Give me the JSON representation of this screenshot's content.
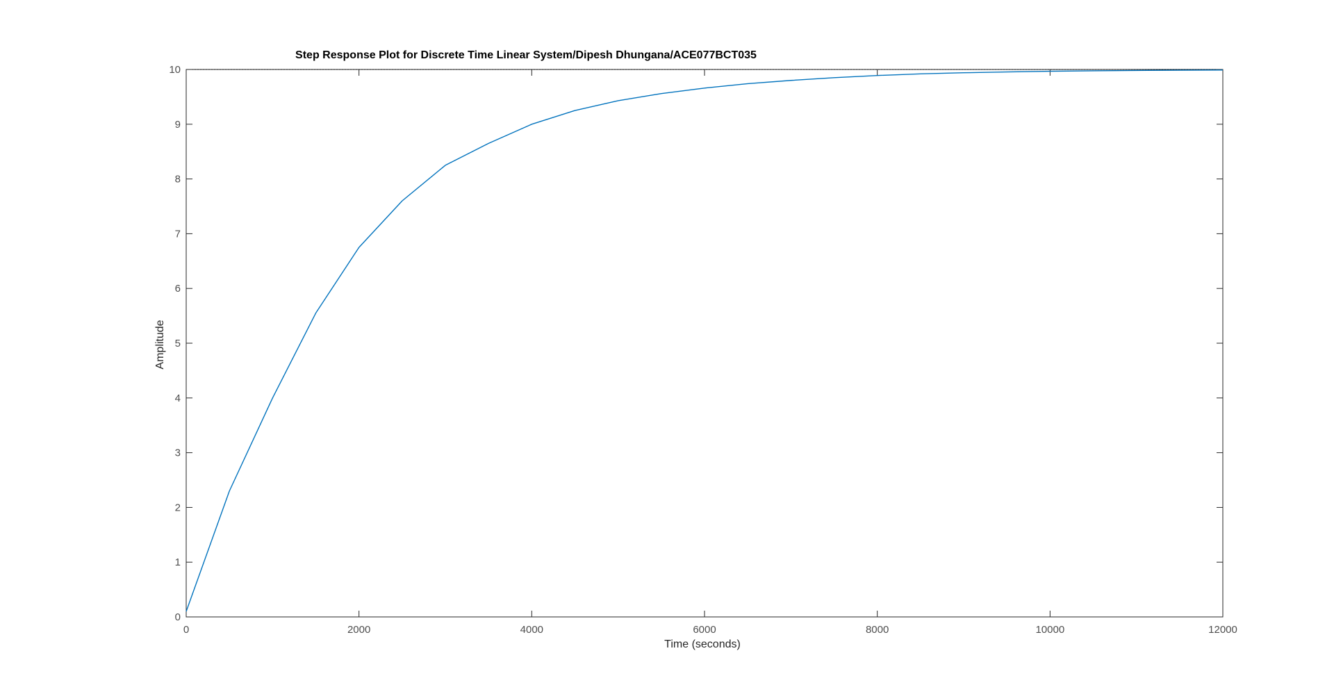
{
  "chart_data": {
    "type": "line",
    "title": "Step Response Plot for Discrete Time Linear System/Dipesh Dhungana/ACE077BCT035",
    "xlabel": "Time (seconds)",
    "ylabel": "Amplitude",
    "xlim": [
      0,
      12000
    ],
    "ylim": [
      0,
      10
    ],
    "xticks": [
      "0",
      "2000",
      "4000",
      "6000",
      "8000",
      "10000",
      "12000"
    ],
    "yticks": [
      "0",
      "1",
      "2",
      "3",
      "4",
      "5",
      "6",
      "7",
      "8",
      "9",
      "10"
    ],
    "grid": false,
    "steady_state": 10,
    "series": [
      {
        "color": "#0072BD",
        "x": [
          0,
          500,
          1000,
          1500,
          2000,
          2500,
          3000,
          3500,
          4000,
          4500,
          5000,
          5500,
          6000,
          6500,
          7000,
          7500,
          8000,
          8500,
          9000,
          9500,
          10000,
          10500,
          11000,
          11500,
          12000
        ],
        "y": [
          0.1,
          2.3,
          4.0,
          5.55,
          6.75,
          7.6,
          8.25,
          8.65,
          9.0,
          9.25,
          9.43,
          9.56,
          9.66,
          9.74,
          9.8,
          9.85,
          9.89,
          9.92,
          9.94,
          9.955,
          9.967,
          9.976,
          9.982,
          9.987,
          9.99
        ]
      }
    ],
    "colors": {
      "axis": "#262626",
      "tick_text": "#4d4d4d",
      "reference_line": "#000000"
    }
  }
}
